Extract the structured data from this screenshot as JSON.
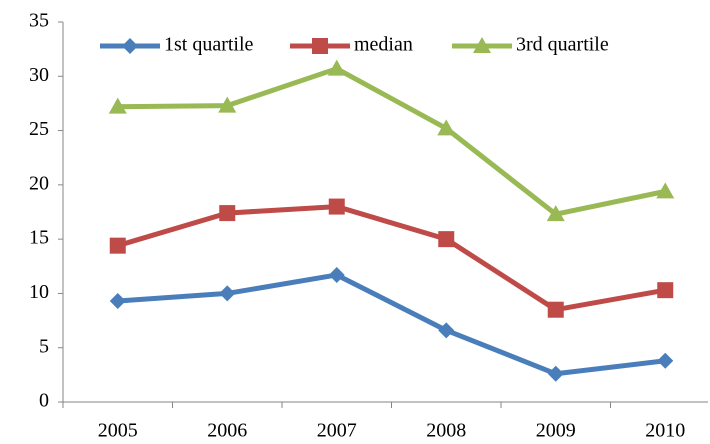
{
  "chart_data": {
    "type": "line",
    "categories": [
      "2005",
      "2006",
      "2007",
      "2008",
      "2009",
      "2010"
    ],
    "series": [
      {
        "name": "1st quartile",
        "color": "#4a7ebb",
        "marker": "diamond",
        "values": [
          9.3,
          10.0,
          11.7,
          6.6,
          2.6,
          3.8
        ]
      },
      {
        "name": "median",
        "color": "#be4b48",
        "marker": "square",
        "values": [
          14.4,
          17.4,
          18.0,
          15.0,
          8.5,
          10.3
        ]
      },
      {
        "name": "3rd quartile",
        "color": "#98b954",
        "marker": "triangle",
        "values": [
          27.2,
          27.3,
          30.7,
          25.2,
          17.3,
          19.4
        ]
      }
    ],
    "ylim": [
      0,
      35
    ],
    "yticks": [
      0,
      5,
      10,
      15,
      20,
      25,
      30,
      35
    ],
    "grid": false,
    "legend": "top"
  }
}
